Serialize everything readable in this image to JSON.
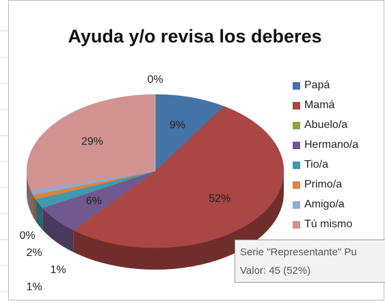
{
  "chart_data": {
    "type": "pie",
    "title": "Ayuda y/o revisa los deberes",
    "categories": [
      "Papá",
      "Mamá",
      "Abuelo/a",
      "Hermano/a",
      "Tio/a",
      "Primo/a",
      "Amigo/a",
      "Tú mismo",
      null
    ],
    "values": [
      9,
      52,
      0,
      6,
      2,
      1,
      1,
      29,
      0
    ],
    "value_labels": [
      "9%",
      "52%",
      "0%",
      "6%",
      "2%",
      "1%",
      "1%",
      "29%",
      "0%"
    ],
    "colors": [
      "#4572A7",
      "#AA4643",
      "#89A54E",
      "#71588F",
      "#4198AF",
      "#DB843D",
      "#93A9CF",
      "#D19392",
      "#B9CD96"
    ],
    "legend": "right"
  },
  "tooltip": {
    "line1": "Serie \"Representante\" Pu",
    "line2": "Valor: 45 (52%)"
  }
}
